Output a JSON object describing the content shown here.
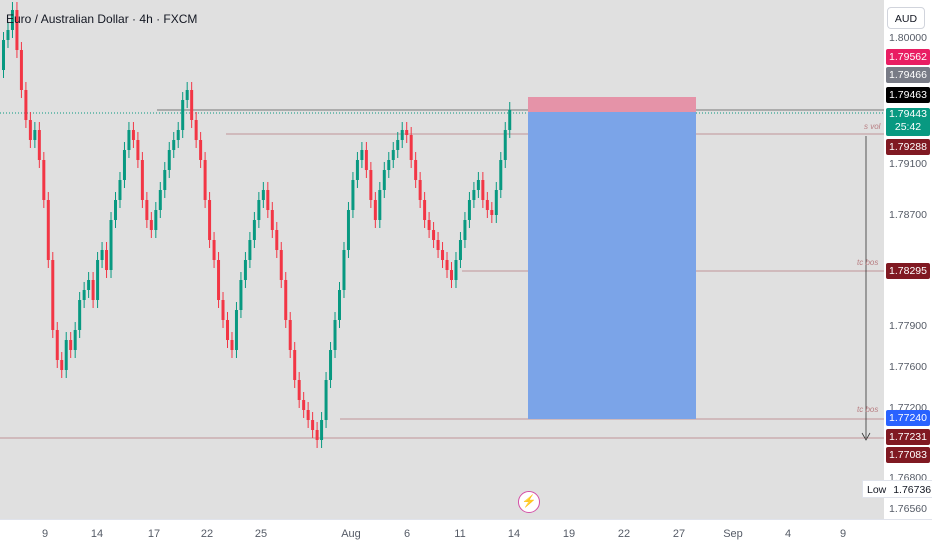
{
  "header": {
    "title": "Euro / Australian Dollar · 4h · FXCM",
    "currency": "AUD"
  },
  "price_axis": {
    "ticks": [
      "1.80000",
      "1.79100",
      "1.78700",
      "1.77900",
      "1.77600",
      "1.77200",
      "1.76800",
      "1.76560"
    ]
  },
  "price_labels": [
    {
      "value": "1.79562",
      "color": "#e91e63"
    },
    {
      "value": "1.79466",
      "color": "#787b86"
    },
    {
      "value": "1.79463",
      "color": "#000000"
    },
    {
      "value": "1.79443",
      "sub": "25:42",
      "color": "#089981"
    },
    {
      "value": "1.79288",
      "color": "#801922"
    },
    {
      "value": "1.78295",
      "color": "#801922"
    },
    {
      "value": "1.77240",
      "color": "#2962ff"
    },
    {
      "value": "1.77231",
      "color": "#801922"
    },
    {
      "value": "1.77083",
      "color": "#801922"
    }
  ],
  "low": {
    "label": "Low",
    "value": "1.76736"
  },
  "annotations": {
    "top": "s vol",
    "mid": "tc bos",
    "low": "tc bos"
  },
  "time_axis": {
    "labels": [
      "9",
      "14",
      "17",
      "22",
      "25",
      "Aug",
      "6",
      "11",
      "14",
      "19",
      "22",
      "27",
      "Sep",
      "4",
      "9"
    ]
  },
  "colors": {
    "up": "#089981",
    "down": "#f23645",
    "target_zone": "#7ba4e8",
    "stop_zone": "#e593a8"
  }
}
